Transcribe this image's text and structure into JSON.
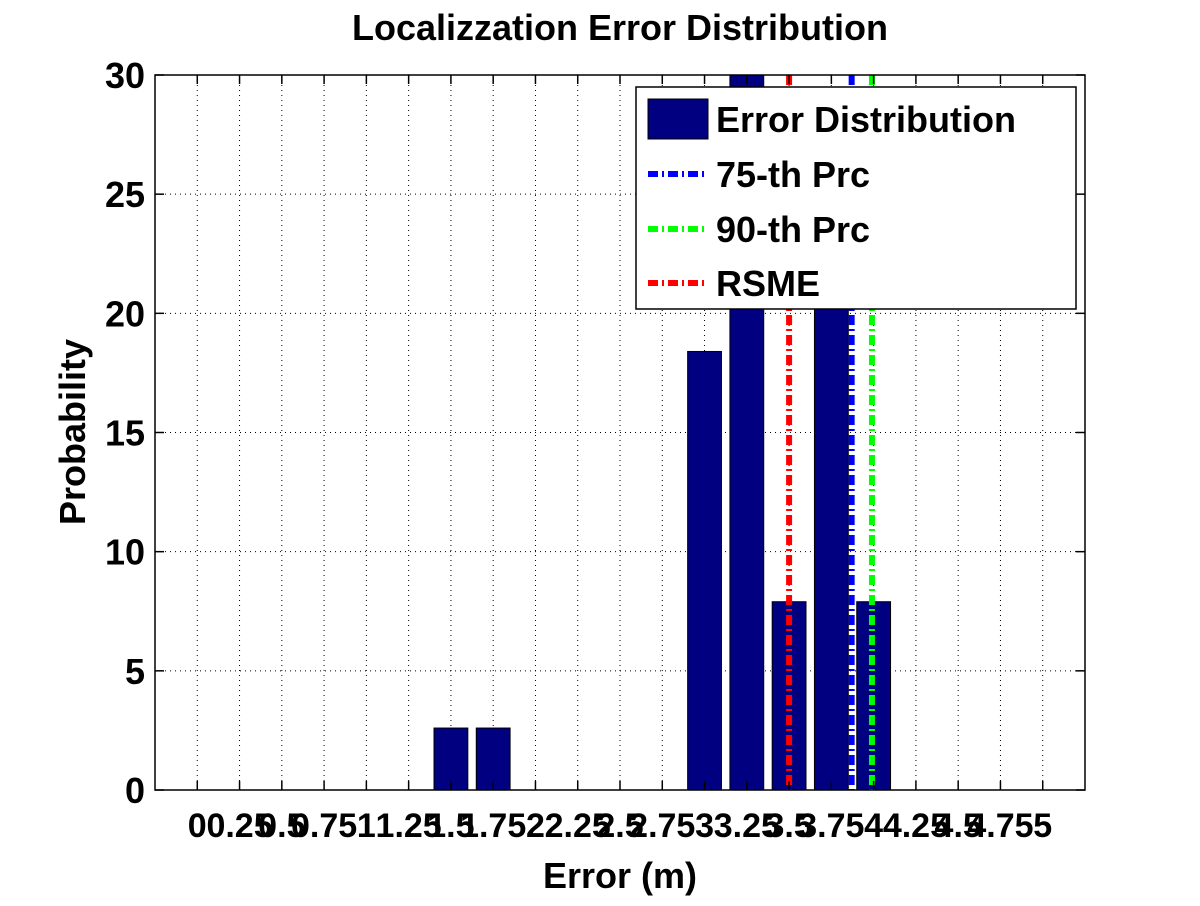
{
  "chart_data": {
    "type": "bar",
    "title": "Localizzation Error Distribution",
    "xlabel": "Error (m)",
    "ylabel": "Probability",
    "xlim": [
      -0.25,
      5.25
    ],
    "ylim": [
      0,
      30
    ],
    "grid": true,
    "x_ticks": [
      0,
      0.25,
      0.5,
      0.75,
      1,
      1.25,
      1.5,
      1.75,
      2,
      2.25,
      2.5,
      2.75,
      3,
      3.25,
      3.5,
      3.75,
      4,
      4.25,
      4.5,
      4.75,
      5
    ],
    "x_tick_labels": [
      "0",
      "0.25",
      "0.5",
      "0.75",
      "1",
      "1.25",
      "1.5",
      "1.75",
      "2",
      "2.25",
      "2.5",
      "2.75",
      "3",
      "3.25",
      "3.5",
      "3.75",
      "4",
      "4.25",
      "4.5",
      "4.75",
      "5"
    ],
    "y_ticks": [
      0,
      5,
      10,
      15,
      20,
      25,
      30
    ],
    "y_tick_labels": [
      "0",
      "5",
      "10",
      "15",
      "20",
      "25",
      "30"
    ],
    "bar_color": "#000080",
    "series": [
      {
        "name": "Error Distribution",
        "x": [
          1.5,
          1.75,
          3.0,
          3.25,
          3.5,
          3.75,
          4.0
        ],
        "values": [
          2.6,
          2.6,
          18.4,
          31.6,
          7.9,
          21.1,
          7.9
        ]
      }
    ],
    "reference_lines": [
      {
        "name": "75-th Prc",
        "x": 3.87,
        "color": "#0000ff"
      },
      {
        "name": "90-th Prc",
        "x": 3.99,
        "color": "#00ff00"
      },
      {
        "name": "RSME",
        "x": 3.5,
        "color": "#ff0000"
      }
    ],
    "legend_position": "top-right"
  }
}
